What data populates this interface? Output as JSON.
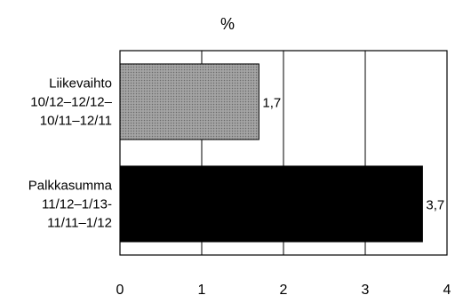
{
  "chart_data": {
    "type": "bar",
    "orientation": "horizontal",
    "title": "%",
    "xlim": [
      0,
      4
    ],
    "x_ticks": [
      "0",
      "1",
      "2",
      "3",
      "4"
    ],
    "grid": "vertical",
    "categories": [
      [
        "Liikevaihto",
        "10/12–12/12–",
        "10/11–12/11"
      ],
      [
        "Palkkasumma",
        "11/12–1/13-",
        "11/11–1/12"
      ]
    ],
    "values": [
      1.7,
      3.7
    ],
    "value_labels": [
      "1,7",
      "3,7"
    ],
    "bar_fills": [
      "dotted-gray",
      "solid-black"
    ],
    "colors": {
      "bar_1": "#8a8a8a",
      "bar_2": "#000000"
    }
  }
}
